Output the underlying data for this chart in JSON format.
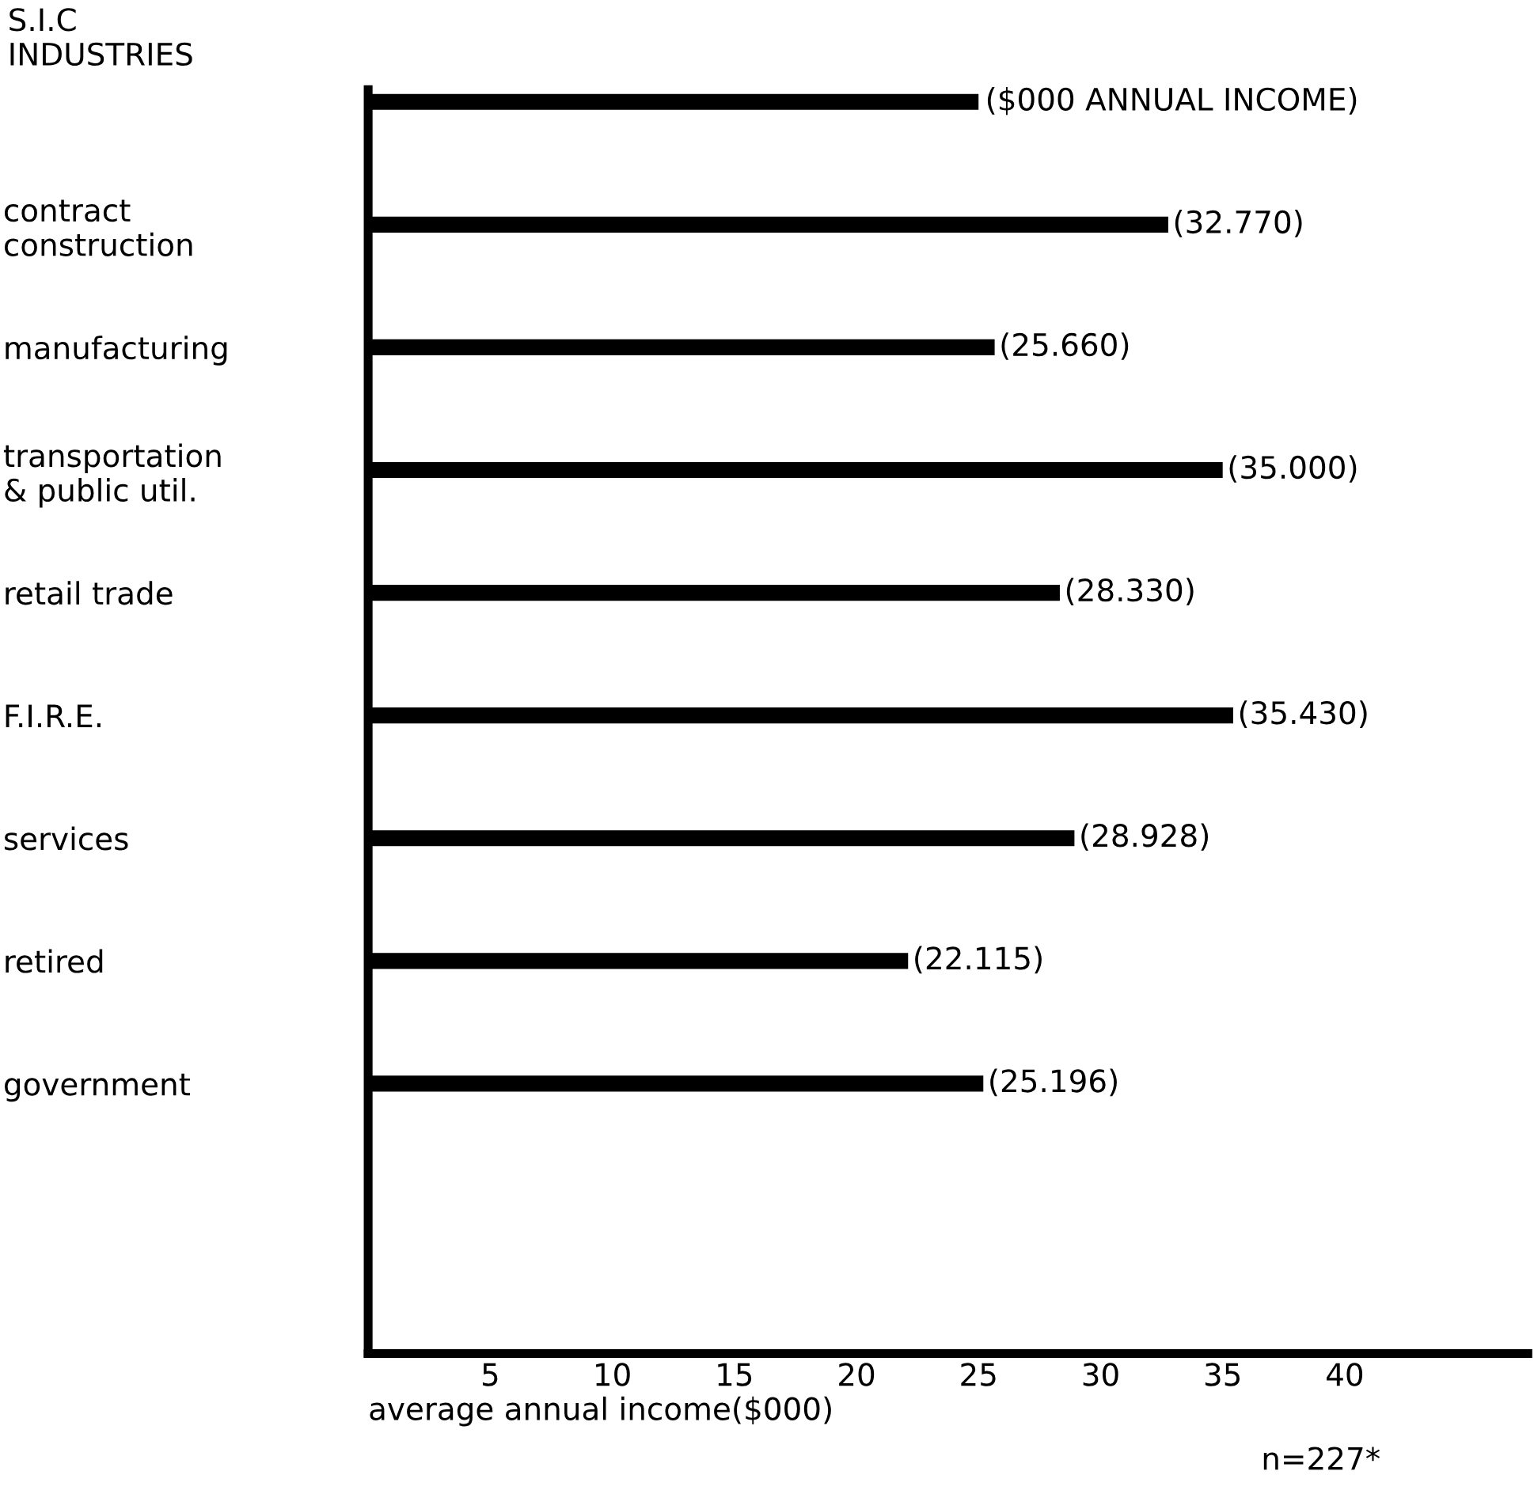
{
  "chart_data": {
    "type": "bar",
    "orientation": "horizontal",
    "ylabel": "S.I.C\nINDUSTRIES",
    "xlabel": "average annual income($000)",
    "categories": [
      null,
      "contract\nconstruction",
      "manufacturing",
      "transportation\n& public util.",
      "retail trade",
      "F.I.R.E.",
      "services",
      "retired",
      "government"
    ],
    "values": [
      25,
      32.77,
      25.66,
      35.0,
      28.33,
      35.43,
      28.928,
      22.115,
      25.196
    ],
    "value_labels": [
      null,
      "(32.770)",
      "(25.660)",
      "(35.000)",
      "(28.330)",
      "(35.430)",
      "(28.928)",
      "(22.115)",
      "(25.196)"
    ],
    "color": "#000000",
    "xlim": [
      0,
      47.5
    ],
    "xticks": [
      5,
      10,
      15,
      20,
      25,
      30,
      35,
      40
    ],
    "annotations": [
      {
        "text": "($000 ANNUAL INCOME)",
        "x": 25
      },
      "n=227*"
    ],
    "grid": false,
    "legend": false
  }
}
